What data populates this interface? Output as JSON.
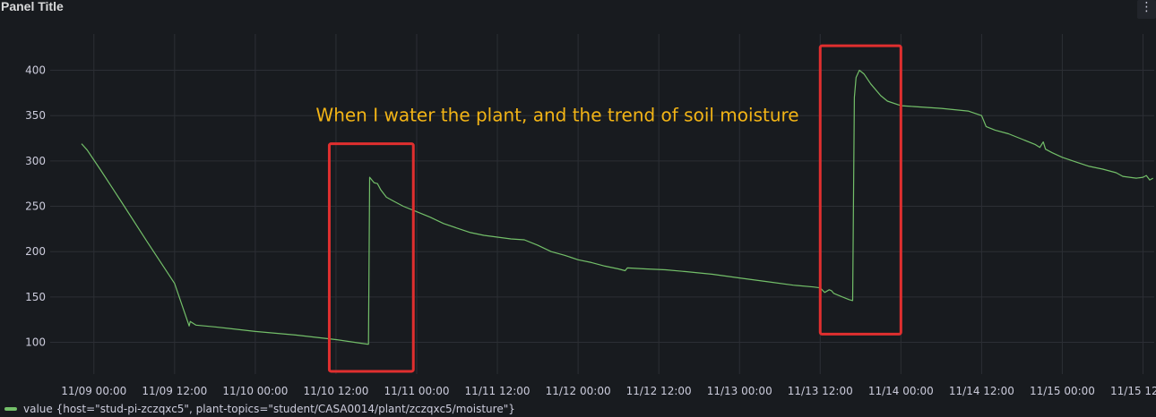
{
  "panel": {
    "title": "Panel Title",
    "menu_icon": "kebab-menu-icon",
    "menu_glyph": "⋮"
  },
  "chart_data": {
    "type": "line",
    "title": "",
    "xlabel": "",
    "ylabel": "",
    "grid": true,
    "legend_placement": "bottom-left",
    "ylim": [
      65,
      440
    ],
    "xlim": [
      "2024-11-08T17:30",
      "2024-11-15T13:40"
    ],
    "yticks": [
      100,
      150,
      200,
      250,
      300,
      350,
      400
    ],
    "xticks": [
      {
        "t": "2024-11-09T00:00",
        "label": "11/09 00:00"
      },
      {
        "t": "2024-11-09T12:00",
        "label": "11/09 12:00"
      },
      {
        "t": "2024-11-10T00:00",
        "label": "11/10 00:00"
      },
      {
        "t": "2024-11-10T12:00",
        "label": "11/10 12:00"
      },
      {
        "t": "2024-11-11T00:00",
        "label": "11/11 00:00"
      },
      {
        "t": "2024-11-11T12:00",
        "label": "11/11 12:00"
      },
      {
        "t": "2024-11-12T00:00",
        "label": "11/12 00:00"
      },
      {
        "t": "2024-11-12T12:00",
        "label": "11/12 12:00"
      },
      {
        "t": "2024-11-13T00:00",
        "label": "11/13 00:00"
      },
      {
        "t": "2024-11-13T12:00",
        "label": "11/13 12:00"
      },
      {
        "t": "2024-11-14T00:00",
        "label": "11/14 00:00"
      },
      {
        "t": "2024-11-14T12:00",
        "label": "11/14 12:00"
      },
      {
        "t": "2024-11-15T00:00",
        "label": "11/15 00:00"
      },
      {
        "t": "2024-11-15T12:00",
        "label": "11/15 12:00"
      }
    ],
    "series": [
      {
        "name": "value {host=\"stud-pi-zczqxc5\", plant-topics=\"student/CASA0014/plant/zczqxc5/moisture\"}",
        "color": "#73bf69",
        "points": [
          [
            "2024-11-08T22:10",
            319
          ],
          [
            "2024-11-08T23:00",
            312
          ],
          [
            "2024-11-09T01:00",
            290
          ],
          [
            "2024-11-09T04:00",
            256
          ],
          [
            "2024-11-09T08:00",
            210
          ],
          [
            "2024-11-09T12:00",
            165
          ],
          [
            "2024-11-09T14:10",
            118
          ],
          [
            "2024-11-09T14:20",
            123
          ],
          [
            "2024-11-09T15:10",
            119
          ],
          [
            "2024-11-09T18:00",
            117
          ],
          [
            "2024-11-10T00:00",
            112
          ],
          [
            "2024-11-10T06:00",
            108
          ],
          [
            "2024-11-10T12:00",
            103
          ],
          [
            "2024-11-10T16:40",
            98
          ],
          [
            "2024-11-10T16:50",
            98
          ],
          [
            "2024-11-10T17:00",
            282
          ],
          [
            "2024-11-10T17:40",
            276
          ],
          [
            "2024-11-10T18:10",
            275
          ],
          [
            "2024-11-10T18:40",
            268
          ],
          [
            "2024-11-10T19:30",
            260
          ],
          [
            "2024-11-10T20:30",
            256
          ],
          [
            "2024-11-10T22:00",
            250
          ],
          [
            "2024-11-11T00:00",
            244
          ],
          [
            "2024-11-11T02:00",
            238
          ],
          [
            "2024-11-11T04:00",
            231
          ],
          [
            "2024-11-11T06:00",
            226
          ],
          [
            "2024-11-11T08:00",
            221
          ],
          [
            "2024-11-11T10:00",
            218
          ],
          [
            "2024-11-11T12:00",
            216
          ],
          [
            "2024-11-11T14:00",
            214
          ],
          [
            "2024-11-11T16:00",
            213
          ],
          [
            "2024-11-11T18:00",
            207
          ],
          [
            "2024-11-11T20:00",
            200
          ],
          [
            "2024-11-11T22:00",
            196
          ],
          [
            "2024-11-12T00:00",
            191
          ],
          [
            "2024-11-12T02:00",
            188
          ],
          [
            "2024-11-12T04:00",
            184
          ],
          [
            "2024-11-12T06:00",
            181
          ],
          [
            "2024-11-12T07:00",
            179
          ],
          [
            "2024-11-12T07:20",
            182
          ],
          [
            "2024-11-12T10:00",
            181
          ],
          [
            "2024-11-12T13:00",
            180
          ],
          [
            "2024-11-12T16:00",
            178
          ],
          [
            "2024-11-12T20:00",
            175
          ],
          [
            "2024-11-13T00:00",
            171
          ],
          [
            "2024-11-13T04:00",
            167
          ],
          [
            "2024-11-13T08:00",
            163
          ],
          [
            "2024-11-13T11:00",
            161
          ],
          [
            "2024-11-13T12:00",
            160
          ],
          [
            "2024-11-13T12:40",
            155
          ],
          [
            "2024-11-13T13:20",
            158
          ],
          [
            "2024-11-13T13:40",
            157
          ],
          [
            "2024-11-13T14:00",
            154
          ],
          [
            "2024-11-13T15:00",
            151
          ],
          [
            "2024-11-13T16:20",
            147
          ],
          [
            "2024-11-13T16:50",
            146
          ],
          [
            "2024-11-13T17:05",
            370
          ],
          [
            "2024-11-13T17:20",
            392
          ],
          [
            "2024-11-13T17:50",
            400
          ],
          [
            "2024-11-13T18:30",
            396
          ],
          [
            "2024-11-13T19:30",
            385
          ],
          [
            "2024-11-13T21:00",
            372
          ],
          [
            "2024-11-13T22:00",
            366
          ],
          [
            "2024-11-14T00:00",
            361
          ],
          [
            "2024-11-14T02:00",
            360
          ],
          [
            "2024-11-14T06:00",
            358
          ],
          [
            "2024-11-14T10:00",
            355
          ],
          [
            "2024-11-14T12:00",
            350
          ],
          [
            "2024-11-14T12:40",
            338
          ],
          [
            "2024-11-14T14:00",
            334
          ],
          [
            "2024-11-14T16:00",
            330
          ],
          [
            "2024-11-14T18:00",
            324
          ],
          [
            "2024-11-14T20:00",
            318
          ],
          [
            "2024-11-14T20:40",
            315
          ],
          [
            "2024-11-14T21:10",
            321
          ],
          [
            "2024-11-14T21:30",
            313
          ],
          [
            "2024-11-14T22:30",
            309
          ],
          [
            "2024-11-15T00:00",
            304
          ],
          [
            "2024-11-15T02:00",
            299
          ],
          [
            "2024-11-15T04:00",
            294
          ],
          [
            "2024-11-15T06:00",
            291
          ],
          [
            "2024-11-15T08:00",
            287
          ],
          [
            "2024-11-15T09:00",
            283
          ],
          [
            "2024-11-15T11:00",
            281
          ],
          [
            "2024-11-15T12:00",
            282
          ],
          [
            "2024-11-15T12:30",
            284
          ],
          [
            "2024-11-15T13:00",
            279
          ],
          [
            "2024-11-15T13:30",
            281
          ]
        ]
      }
    ],
    "annotations": [
      {
        "type": "text",
        "text": "When I water the plant, and the trend of soil moisture",
        "color": "#f2b416",
        "x": "2024-11-10T09:00",
        "y": 344
      },
      {
        "type": "box",
        "color": "#e02f2f",
        "x0": "2024-11-10T11:00",
        "x1": "2024-11-10T23:30",
        "y0": 68,
        "y1": 319
      },
      {
        "type": "box",
        "color": "#e02f2f",
        "x0": "2024-11-13T12:00",
        "x1": "2024-11-14T00:00",
        "y0": 109,
        "y1": 427
      }
    ]
  }
}
